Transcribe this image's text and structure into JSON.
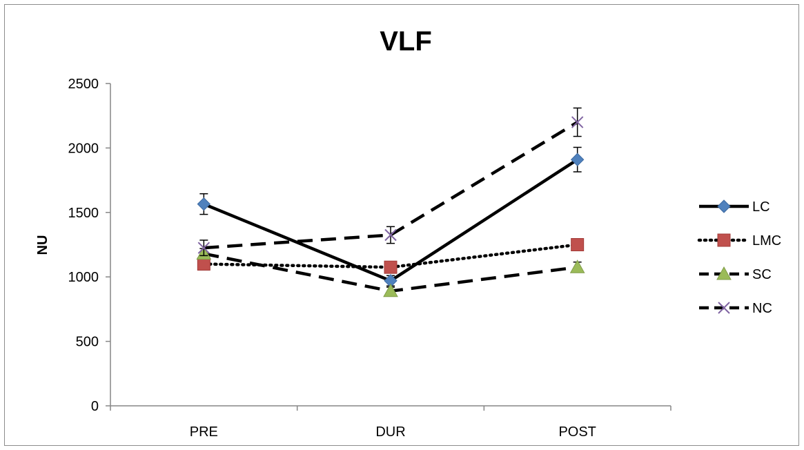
{
  "chart_data": {
    "type": "line",
    "title": "VLF",
    "xlabel": "",
    "ylabel": "NU",
    "categories": [
      "PRE",
      "DUR",
      "POST"
    ],
    "ylim": [
      0,
      2500
    ],
    "yticks": [
      0,
      500,
      1000,
      1500,
      2000,
      2500
    ],
    "grid": false,
    "legend_position": "right",
    "series": [
      {
        "name": "LC",
        "values": [
          1565,
          970,
          1910
        ],
        "errors": [
          80,
          40,
          95
        ],
        "line_style": "solid",
        "marker": "diamond",
        "marker_color": "#4f81bd"
      },
      {
        "name": "LMC",
        "values": [
          1100,
          1075,
          1250
        ],
        "errors": [
          40,
          40,
          45
        ],
        "line_style": "dotted",
        "marker": "square",
        "marker_color": "#c0504d"
      },
      {
        "name": "SC",
        "values": [
          1180,
          890,
          1075
        ],
        "errors": [
          40,
          30,
          40
        ],
        "line_style": "dashed",
        "marker": "triangle",
        "marker_color": "#9bbb59"
      },
      {
        "name": "NC",
        "values": [
          1225,
          1325,
          2200
        ],
        "errors": [
          60,
          65,
          110
        ],
        "line_style": "dashed",
        "marker": "x",
        "marker_color": "#8064a2"
      }
    ]
  }
}
